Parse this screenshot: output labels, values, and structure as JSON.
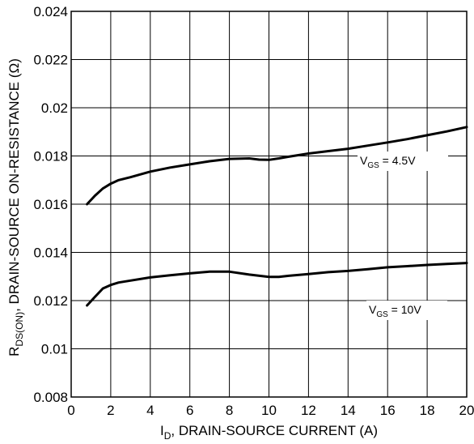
{
  "chart_data": {
    "type": "line",
    "xlim": [
      0,
      20
    ],
    "ylim": [
      0.008,
      0.024
    ],
    "x_ticks": [
      "0",
      "2",
      "4",
      "6",
      "8",
      "10",
      "12",
      "14",
      "16",
      "18",
      "20"
    ],
    "y_ticks": [
      "0.024",
      "0.022",
      "0.02",
      "0.018",
      "0.016",
      "0.014",
      "0.012",
      "0.01",
      "0.008"
    ],
    "grid": true,
    "xlabel": {
      "main": "I",
      "sub": "D",
      "rest": ", DRAIN-SOURCE CURRENT (A)"
    },
    "ylabel": {
      "main": "R",
      "sub": "DS(ON)",
      "rest": ", DRAIN-SOURCE ON-RESISTANCE (Ω)"
    },
    "series": [
      {
        "label_main": "V",
        "label_sub": "GS",
        "label_rest": " = 4.5V",
        "x": [
          0.8,
          1.2,
          1.6,
          2.0,
          2.4,
          3,
          4,
          5,
          6,
          7,
          8,
          9,
          9.5,
          10,
          10.5,
          11,
          12,
          13,
          14,
          15,
          16,
          17,
          18,
          19,
          20
        ],
        "values": [
          0.016,
          0.01635,
          0.01665,
          0.01685,
          0.017,
          0.01712,
          0.01735,
          0.01752,
          0.01765,
          0.01778,
          0.01788,
          0.0179,
          0.01785,
          0.01784,
          0.0179,
          0.01797,
          0.0181,
          0.0182,
          0.0183,
          0.01843,
          0.01856,
          0.0187,
          0.01886,
          0.01902,
          0.0192
        ]
      },
      {
        "label_main": "V",
        "label_sub": "GS",
        "label_rest": " = 10V",
        "x": [
          0.8,
          1.2,
          1.6,
          2.0,
          2.4,
          3,
          4,
          5,
          6,
          7,
          8,
          9,
          10,
          10.5,
          11,
          12,
          13,
          14,
          15,
          16,
          17,
          18,
          19,
          20
        ],
        "values": [
          0.0118,
          0.01215,
          0.0125,
          0.01265,
          0.01275,
          0.01283,
          0.01296,
          0.01305,
          0.01313,
          0.0132,
          0.0132,
          0.01308,
          0.01298,
          0.01298,
          0.01303,
          0.0131,
          0.01318,
          0.01323,
          0.0133,
          0.01338,
          0.01343,
          0.01348,
          0.01352,
          0.01356
        ]
      }
    ]
  }
}
